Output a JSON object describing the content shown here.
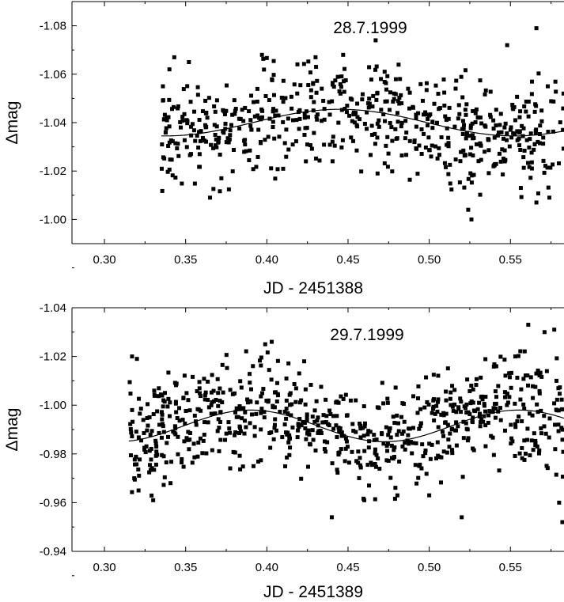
{
  "chart_data": [
    {
      "type": "scatter",
      "title": "28.7.1999",
      "xlabel": "JD - 2451388",
      "ylabel": "Δmag",
      "xlim": [
        0.28,
        0.583
      ],
      "ylim": [
        -0.99,
        -1.09
      ],
      "y_axis_inverted": true,
      "x_ticks": [
        "0.30",
        "0.35",
        "0.40",
        "0.45",
        "0.50",
        "0.55"
      ],
      "y_ticks": [
        "-1.08",
        "-1.06",
        "-1.04",
        "-1.02",
        "-1.00"
      ],
      "grid": false,
      "legend": "none",
      "marker_color": "#000000",
      "fit_curve": {
        "kind": "sinusoid",
        "mean": -1.04,
        "amplitude": 0.0055,
        "period": 0.215,
        "phase_peak_x": 0.445
      },
      "series": [
        {
          "x_range": [
            0.335,
            0.583
          ],
          "count": 620,
          "approx_scatter": 0.011,
          "points_sample": [
            [
              0.336,
              -1.055
            ],
            [
              0.34,
              -1.062
            ],
            [
              0.343,
              -1.067
            ],
            [
              0.352,
              -1.065
            ],
            [
              0.365,
              -1.009
            ],
            [
              0.372,
              -1.017
            ],
            [
              0.397,
              -1.068
            ],
            [
              0.43,
              -1.067
            ],
            [
              0.447,
              -1.068
            ],
            [
              0.467,
              -1.074
            ],
            [
              0.524,
              -1.004
            ],
            [
              0.526,
              -1.0
            ],
            [
              0.548,
              -1.072
            ],
            [
              0.566,
              -1.079
            ],
            [
              0.566,
              -1.007
            ],
            [
              0.574,
              -1.009
            ],
            [
              0.573,
              -1.055
            ]
          ]
        }
      ]
    },
    {
      "type": "scatter",
      "title": "29.7.1999",
      "xlabel": "JD - 2451389",
      "ylabel": "Δmag",
      "xlim": [
        0.28,
        0.583
      ],
      "ylim": [
        -0.94,
        -1.04
      ],
      "y_axis_inverted": true,
      "x_ticks": [
        "0.30",
        "0.35",
        "0.40",
        "0.45",
        "0.50",
        "0.55"
      ],
      "y_ticks": [
        "-1.04",
        "-1.02",
        "-1.00",
        "-0.98",
        "-0.96",
        "-0.94"
      ],
      "grid": false,
      "legend": "none",
      "marker_color": "#000000",
      "fit_curve": {
        "kind": "sinusoid",
        "mean": -0.9915,
        "amplitude": 0.0065,
        "period": 0.165,
        "phase_peak_x": 0.39
      },
      "series": [
        {
          "x_range": [
            0.315,
            0.583
          ],
          "count": 760,
          "approx_scatter": 0.0105,
          "points_sample": [
            [
              0.317,
              -1.02
            ],
            [
              0.32,
              -1.019
            ],
            [
              0.321,
              -0.965
            ],
            [
              0.33,
              -0.961
            ],
            [
              0.399,
              -1.025
            ],
            [
              0.403,
              -1.026
            ],
            [
              0.423,
              -1.018
            ],
            [
              0.44,
              -0.954
            ],
            [
              0.46,
              -0.961
            ],
            [
              0.5,
              -0.963
            ],
            [
              0.52,
              -0.954
            ],
            [
              0.553,
              -1.02
            ],
            [
              0.561,
              -1.033
            ],
            [
              0.571,
              -1.03
            ],
            [
              0.577,
              -1.031
            ],
            [
              0.58,
              -0.96
            ],
            [
              0.582,
              -0.952
            ]
          ]
        }
      ]
    }
  ]
}
